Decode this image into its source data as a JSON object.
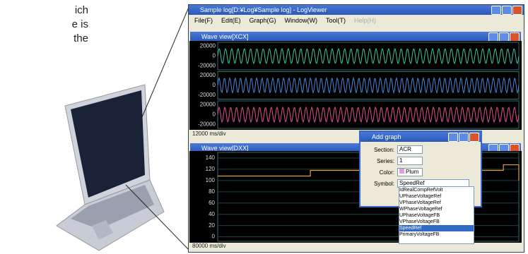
{
  "caption_fragment": [
    "ich",
    "e is",
    "the"
  ],
  "window": {
    "title": "Sample log[D:¥Log¥Sample log] - LogViewer",
    "menu": [
      "File(F)",
      "Edit(E)",
      "Graph(G)",
      "Window(W)",
      "Tool(T)",
      "Help(H)"
    ]
  },
  "wave_view_1": {
    "title": "Wave view[XCX]",
    "time_scale": "12000 ms/div",
    "ylim": [
      -28000,
      28000
    ],
    "panels": [
      {
        "color": "#3cc6a0",
        "amplitude": 15000,
        "yticks": [
          20000,
          0,
          -20000
        ]
      },
      {
        "color": "#4a86d8",
        "amplitude": 15000,
        "yticks": [
          20000,
          0,
          -20000
        ]
      },
      {
        "color": "#e0508c",
        "amplitude": 15000,
        "yticks": [
          20000,
          0,
          -20000
        ]
      }
    ]
  },
  "wave_view_2": {
    "title": "Wave view[DXX]",
    "time_scale": "80000 ms/div",
    "ylim": [
      -8,
      150
    ],
    "yticks": [
      140,
      120,
      100,
      80,
      60,
      40,
      20,
      0
    ],
    "color": "#e0a040",
    "values": [
      108,
      108,
      108,
      108,
      108,
      108,
      108,
      108,
      108,
      108,
      108,
      108,
      118,
      118,
      118,
      118,
      118,
      118,
      118,
      118,
      118,
      118,
      118,
      118,
      118,
      118,
      118,
      118,
      118,
      118,
      118,
      118,
      118,
      118,
      118,
      118,
      118,
      128,
      128,
      100
    ]
  },
  "dialog": {
    "title": "Add graph",
    "fields": [
      {
        "label": "Section:",
        "value": "ACR"
      },
      {
        "label": "Series:",
        "value": "1"
      },
      {
        "label": "Color:",
        "value": "Plum"
      },
      {
        "label": "Symbol:",
        "value": "SpeedRef"
      }
    ],
    "swatch": "#dda0dd",
    "options": [
      "IdRealCompRefVolt",
      "UPhaseVoltageRef",
      "VPhaseVoltageRef",
      "WPhaseVoltageRef",
      "UPhaseVoltageFB",
      "VPhaseVoltageFB",
      "SpeedRef",
      "PrimaryVoltageFB"
    ],
    "selected": "SpeedRef"
  }
}
